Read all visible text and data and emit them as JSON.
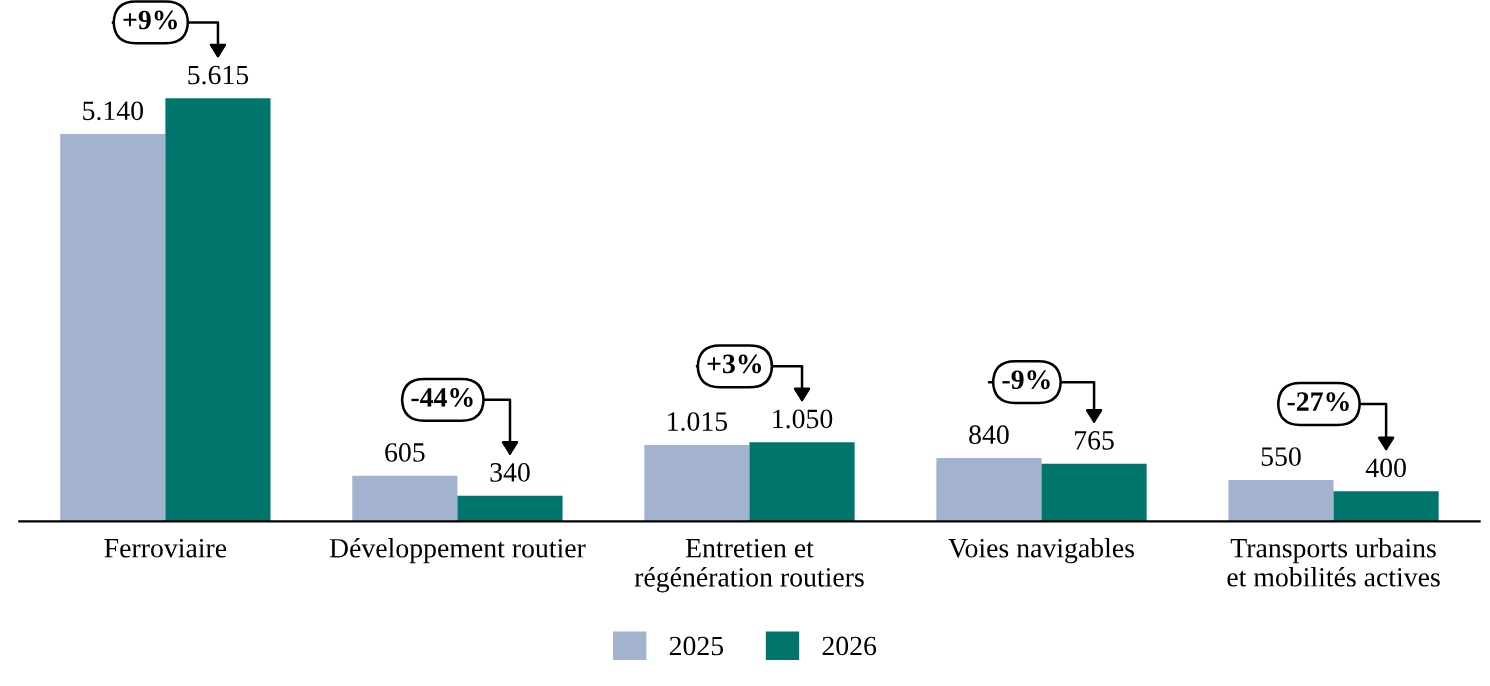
{
  "chart_data": {
    "type": "bar",
    "categories": [
      "Ferroviaire",
      "Développement routier",
      "Entretien et\nrégénération routiers",
      "Voies navigables",
      "Transports urbains\net mobilités actives"
    ],
    "series": [
      {
        "name": "2025",
        "color": "#a2b2cf",
        "values": [
          5140,
          605,
          1015,
          840,
          550
        ],
        "value_labels": [
          "5.140",
          "605",
          "1.015",
          "840",
          "550"
        ]
      },
      {
        "name": "2026",
        "color": "#00756c",
        "values": [
          5615,
          340,
          1050,
          765,
          400
        ],
        "value_labels": [
          "5.615",
          "340",
          "1.050",
          "765",
          "400"
        ]
      }
    ],
    "annotations": [
      "+9%",
      "-44%",
      "+3%",
      "-9%",
      "-27%"
    ],
    "legend": "bottom",
    "grid": false
  }
}
